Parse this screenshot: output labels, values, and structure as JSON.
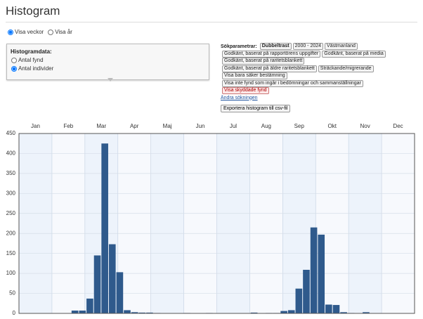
{
  "header": {
    "title": "Histogram"
  },
  "view_options": [
    "Visa veckor",
    "Visa år"
  ],
  "panel": {
    "title": "Histogramdata:",
    "options": [
      "Antal fynd",
      "Antal individer"
    ]
  },
  "search": {
    "label": "Sökparametrar:",
    "rows": [
      [
        "Dubbeltrast",
        "2000 - 2024",
        "Västmanland"
      ],
      [
        "Godkänt, baserat på rapportörens uppgifter",
        "Godkänt, baserat på media"
      ],
      [
        "Godkänt, baserat på raritetsblankett"
      ],
      [
        "Godkänt, baserat på äldre raritetsblankett",
        "Sträckande/migrerande"
      ],
      [
        "Visa bara säker bestämning"
      ],
      [
        "Visa inte fynd som ingår i bedömningar och sammanställningar"
      ],
      [
        "Visa skyddade fynd"
      ]
    ],
    "change_link": "Ändra sökningen",
    "export_button": "Exportera histogram till csv-fil"
  },
  "chart_data": {
    "type": "histogram",
    "top_categories": [
      "Jan",
      "Feb",
      "Mar",
      "Apr",
      "Maj",
      "Jun",
      "Jul",
      "Aug",
      "Sep",
      "Okt",
      "Nov",
      "Dec"
    ],
    "values": [
      0,
      0,
      0,
      0,
      0,
      0,
      0,
      7,
      7,
      37,
      145,
      425,
      173,
      103,
      8,
      3,
      2,
      2,
      1,
      0,
      0,
      0,
      1,
      0,
      0,
      1,
      0,
      0,
      0,
      0,
      0,
      2,
      0,
      1,
      1,
      6,
      8,
      62,
      109,
      215,
      197,
      22,
      21,
      3,
      1,
      0,
      3,
      0,
      0,
      0,
      0,
      0,
      0
    ],
    "ylim": [
      0,
      450
    ],
    "yticks": [
      0,
      50,
      100,
      150,
      200,
      250,
      300,
      350,
      400,
      450
    ],
    "color": "#2f5a8c",
    "grid": true
  }
}
